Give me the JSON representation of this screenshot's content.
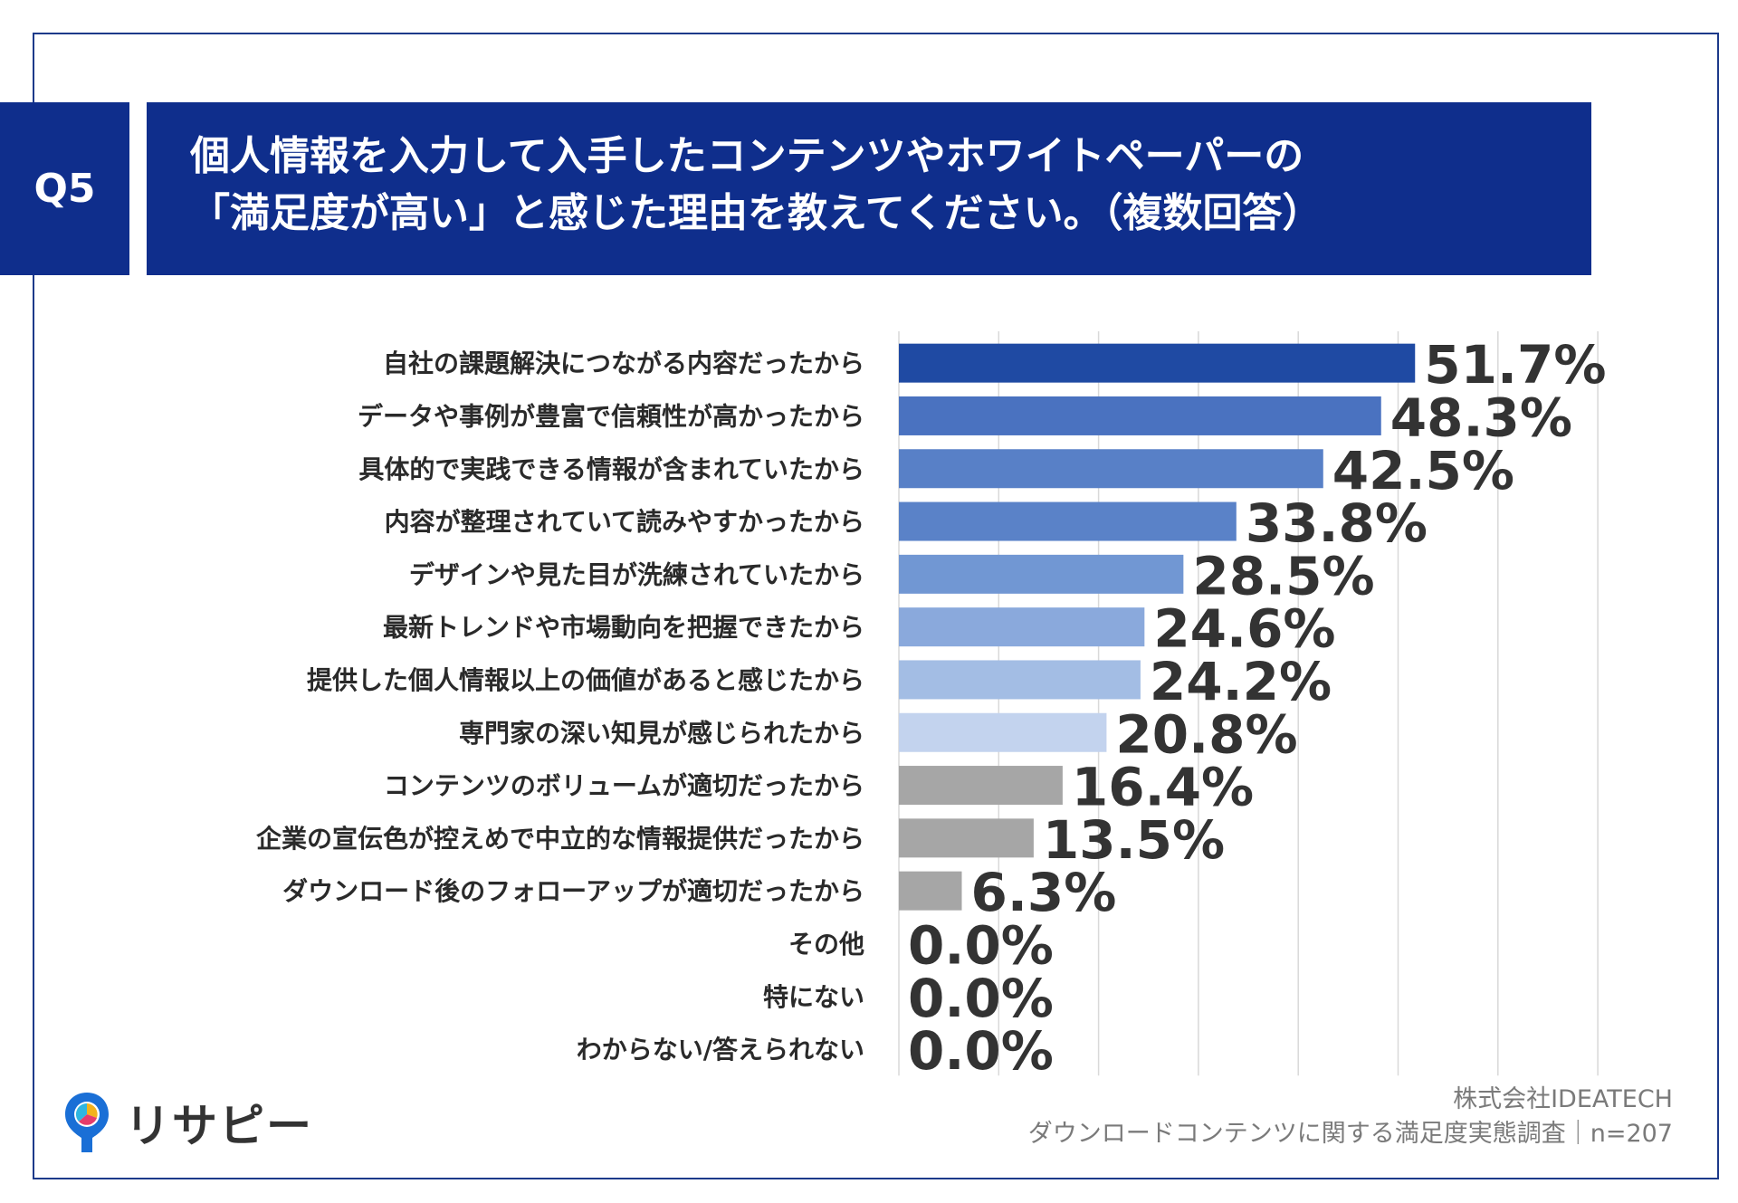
{
  "question": {
    "badge": "Q5",
    "title_line1": "個人情報を入力して入手したコンテンツやホワイトペーパーの",
    "title_line2": "「満足度が高い」と感じた理由を教えてください。（複数回答）"
  },
  "footer": {
    "company": "株式会社IDEATECH",
    "survey": "ダウンロードコンテンツに関する満足度実態調査｜n=207"
  },
  "logo": {
    "text": "リサピー"
  },
  "colors": {
    "header_bg": "#0f2e8c",
    "frame": "#1d3a8a",
    "bars": [
      "#1f4aa3",
      "#4a72c0",
      "#5880c7",
      "#5a82c8",
      "#7197d3",
      "#8aa9dc",
      "#a3bde4",
      "#c3d3ee",
      "#a6a6a6",
      "#a6a6a6",
      "#a6a6a6",
      "#a6a6a6",
      "#a6a6a6",
      "#a6a6a6"
    ]
  },
  "chart_data": {
    "type": "bar",
    "orientation": "horizontal",
    "title": "個人情報を入力して入手したコンテンツやホワイトペーパーの「満足度が高い」と感じた理由を教えてください。（複数回答）",
    "categories": [
      "自社の課題解決につながる内容だったから",
      "データや事例が豊富で信頼性が高かったから",
      "具体的で実践できる情報が含まれていたから",
      "内容が整理されていて読みやすかったから",
      "デザインや見た目が洗練されていたから",
      "最新トレンドや市場動向を把握できたから",
      "提供した個人情報以上の価値があると感じたから",
      "専門家の深い知見が感じられたから",
      "コンテンツのボリュームが適切だったから",
      "企業の宣伝色が控えめで中立的な情報提供だったから",
      "ダウンロード後のフォローアップが適切だったから",
      "その他",
      "特にない",
      "わからない/答えられない"
    ],
    "values": [
      51.7,
      48.3,
      42.5,
      33.8,
      28.5,
      24.6,
      24.2,
      20.8,
      16.4,
      13.5,
      6.3,
      0.0,
      0.0,
      0.0
    ],
    "labels": [
      "51.7%",
      "48.3%",
      "42.5%",
      "33.8%",
      "28.5%",
      "24.6%",
      "24.2%",
      "20.8%",
      "16.4%",
      "13.5%",
      "6.3%",
      "0.0%",
      "0.0%",
      "0.0%"
    ],
    "unit": "%",
    "xlim": [
      0,
      70
    ],
    "grid": true,
    "xlabel": "",
    "ylabel": ""
  }
}
